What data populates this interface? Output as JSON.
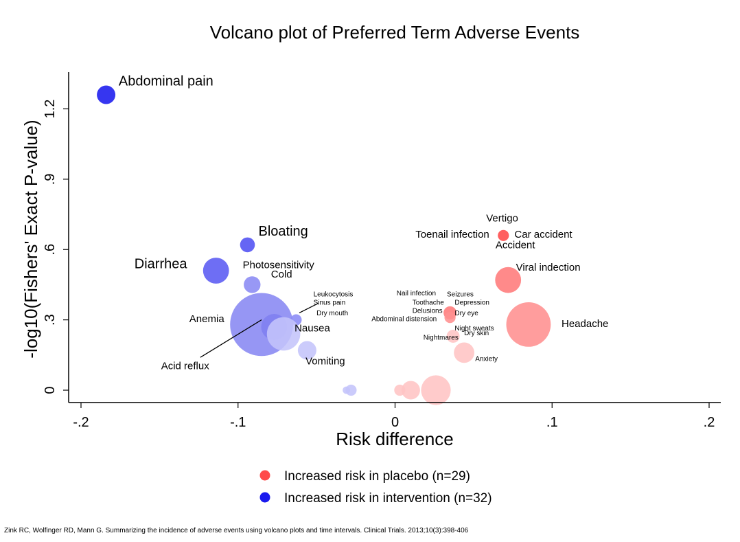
{
  "chart_data": {
    "type": "scatter",
    "title": "Volcano plot of Preferred Term Adverse Events",
    "xlabel": "Risk difference",
    "ylabel": "-log10(Fishers' Exact P-value)",
    "xlim": [
      -0.2,
      0.2
    ],
    "ylim": [
      0,
      1.3
    ],
    "xticks": [
      {
        "value": -0.2,
        "label": "-.2"
      },
      {
        "value": -0.1,
        "label": "-.1"
      },
      {
        "value": 0,
        "label": "0"
      },
      {
        "value": 0.1,
        "label": ".1"
      },
      {
        "value": 0.2,
        "label": ".2"
      }
    ],
    "yticks": [
      {
        "value": 0,
        "label": "0"
      },
      {
        "value": 0.3,
        "label": ".3"
      },
      {
        "value": 0.6,
        "label": ".6"
      },
      {
        "value": 0.9,
        "label": ".9"
      },
      {
        "value": 1.2,
        "label": "1.2"
      }
    ],
    "grid": false,
    "legend_position": "bottom",
    "series": [
      {
        "name": "Increased risk in placebo (n=29)",
        "color": "#ff4a4a"
      },
      {
        "name": "Increased risk in intervention (n=32)",
        "color": "#1a1aee"
      }
    ],
    "points": [
      {
        "x": -0.184,
        "y": 1.26,
        "size": 5,
        "color": "#1a1aee"
      },
      {
        "x": -0.094,
        "y": 0.62,
        "size": 4,
        "color": "#5050f2"
      },
      {
        "x": -0.114,
        "y": 0.51,
        "size": 7,
        "color": "#5a5af2"
      },
      {
        "x": -0.091,
        "y": 0.45,
        "size": 4.5,
        "color": "#8a8af4"
      },
      {
        "x": -0.085,
        "y": 0.28,
        "size": 17,
        "color": "#8888f3"
      },
      {
        "x": -0.077,
        "y": 0.27,
        "size": 7,
        "color": "#8080f0"
      },
      {
        "x": -0.063,
        "y": 0.3,
        "size": 3,
        "color": "#8a8af6"
      },
      {
        "x": -0.071,
        "y": 0.24,
        "size": 9,
        "color": "#c4c4fa"
      },
      {
        "x": -0.056,
        "y": 0.17,
        "size": 5,
        "color": "#c4c4fa"
      },
      {
        "x": -0.031,
        "y": 0.0,
        "size": 2,
        "color": "#c4c4fa"
      },
      {
        "x": -0.028,
        "y": 0.0,
        "size": 3,
        "color": "#c4c4fa"
      },
      {
        "x": 0.069,
        "y": 0.66,
        "size": 3,
        "color": "#ff4a4a"
      },
      {
        "x": 0.072,
        "y": 0.47,
        "size": 7,
        "color": "#ff7a7a"
      },
      {
        "x": 0.085,
        "y": 0.28,
        "size": 12,
        "color": "#ff9090"
      },
      {
        "x": 0.035,
        "y": 0.33,
        "size": 3.5,
        "color": "#ff7a7a"
      },
      {
        "x": 0.035,
        "y": 0.31,
        "size": 3,
        "color": "#ff9090"
      },
      {
        "x": 0.037,
        "y": 0.23,
        "size": 3.5,
        "color": "#ffc4c4"
      },
      {
        "x": 0.044,
        "y": 0.16,
        "size": 5.5,
        "color": "#ffc4c4"
      },
      {
        "x": 0.003,
        "y": 0.0,
        "size": 3,
        "color": "#ffc4c4"
      },
      {
        "x": 0.01,
        "y": 0.0,
        "size": 5,
        "color": "#ffc4c4"
      },
      {
        "x": 0.026,
        "y": 0.0,
        "size": 8,
        "color": "#ffc4c4"
      }
    ],
    "annotations": [
      {
        "text": "Abdominal pain",
        "x": -0.176,
        "y": 1.3,
        "size": 20
      },
      {
        "text": "Bloating",
        "x": -0.087,
        "y": 0.66,
        "size": 20
      },
      {
        "text": "Diarrhea",
        "x": -0.166,
        "y": 0.52,
        "size": 20
      },
      {
        "text": "Photosensitivity",
        "x": -0.097,
        "y": 0.52,
        "size": 15
      },
      {
        "text": "Cold",
        "x": -0.079,
        "y": 0.48,
        "size": 15
      },
      {
        "text": "Anemia",
        "x": -0.131,
        "y": 0.29,
        "size": 15
      },
      {
        "text": "Nausea",
        "x": -0.064,
        "y": 0.25,
        "size": 15
      },
      {
        "text": "Vomiting",
        "x": -0.057,
        "y": 0.11,
        "size": 15
      },
      {
        "text": "Acid reflux",
        "x": -0.149,
        "y": 0.09,
        "size": 15
      },
      {
        "text": "Leukocytosis",
        "x": -0.052,
        "y": 0.4,
        "size": 10
      },
      {
        "text": "Sinus pain",
        "x": -0.052,
        "y": 0.365,
        "size": 10
      },
      {
        "text": "Dry mouth",
        "x": -0.05,
        "y": 0.32,
        "size": 10
      },
      {
        "text": "Vertigo",
        "x": 0.058,
        "y": 0.72,
        "size": 15
      },
      {
        "text": "Toenail infection",
        "x": 0.013,
        "y": 0.65,
        "size": 15
      },
      {
        "text": "Car accident",
        "x": 0.076,
        "y": 0.65,
        "size": 15
      },
      {
        "text": "Accident",
        "x": 0.064,
        "y": 0.605,
        "size": 15
      },
      {
        "text": "Viral indection",
        "x": 0.077,
        "y": 0.51,
        "size": 15
      },
      {
        "text": "Headache",
        "x": 0.106,
        "y": 0.27,
        "size": 15
      },
      {
        "text": "Nail infection",
        "x": 0.001,
        "y": 0.405,
        "size": 10
      },
      {
        "text": "Seizures",
        "x": 0.033,
        "y": 0.4,
        "size": 10
      },
      {
        "text": "Toothache",
        "x": 0.011,
        "y": 0.365,
        "size": 10
      },
      {
        "text": "Depression",
        "x": 0.038,
        "y": 0.365,
        "size": 10
      },
      {
        "text": "Delusions",
        "x": 0.011,
        "y": 0.33,
        "size": 10
      },
      {
        "text": "Dry eye",
        "x": 0.038,
        "y": 0.32,
        "size": 10
      },
      {
        "text": "Abdominal distension",
        "x": -0.015,
        "y": 0.295,
        "size": 10
      },
      {
        "text": "Night sweats",
        "x": 0.038,
        "y": 0.255,
        "size": 10
      },
      {
        "text": "Dry skin",
        "x": 0.044,
        "y": 0.235,
        "size": 10
      },
      {
        "text": "Nightmares",
        "x": 0.018,
        "y": 0.215,
        "size": 10
      },
      {
        "text": "Anxiety",
        "x": 0.051,
        "y": 0.125,
        "size": 10
      }
    ],
    "callout_lines": [
      {
        "x1": -0.124,
        "y1": 0.14,
        "x2": -0.085,
        "y2": 0.3
      },
      {
        "x1": -0.061,
        "y1": 0.33,
        "x2": -0.049,
        "y2": 0.37
      }
    ]
  },
  "footer": {
    "citation": "Zink RC, Wolfinger RD, Mann G. Summarizing the incidence of adverse events using volcano plots and time intervals. Clinical Trials. 2013;10(3):398-406"
  }
}
